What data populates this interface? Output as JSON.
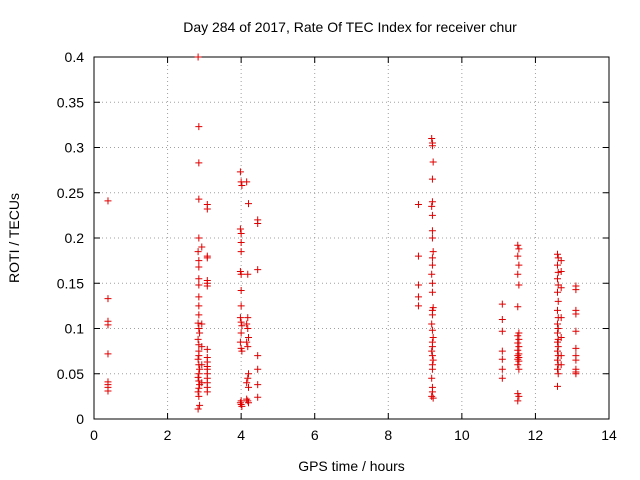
{
  "chart_data": {
    "type": "scatter",
    "title": "Day 284 of 2017, Rate Of TEC Index for receiver chur",
    "xlabel": "GPS time / hours",
    "ylabel": "ROTI / TECUs",
    "xlim": [
      0,
      14
    ],
    "ylim": [
      0,
      0.4
    ],
    "xticks": [
      "0",
      "2",
      "4",
      "6",
      "8",
      "10",
      "12",
      "14"
    ],
    "yticks": [
      "0",
      "0.05",
      "0.1",
      "0.15",
      "0.2",
      "0.25",
      "0.3",
      "0.35",
      "0.4"
    ],
    "grid": true,
    "marker": "+",
    "color": "#e00000",
    "series": [
      {
        "points": [
          [
            0.38,
            0.241
          ],
          [
            0.38,
            0.133
          ],
          [
            0.38,
            0.108
          ],
          [
            0.38,
            0.104
          ],
          [
            0.38,
            0.072
          ],
          [
            0.38,
            0.041
          ],
          [
            0.38,
            0.038
          ],
          [
            0.38,
            0.035
          ],
          [
            0.38,
            0.031
          ],
          [
            2.83,
            0.4
          ],
          [
            2.85,
            0.323
          ],
          [
            2.85,
            0.283
          ],
          [
            2.85,
            0.243
          ],
          [
            2.85,
            0.2
          ],
          [
            2.83,
            0.185
          ],
          [
            2.85,
            0.175
          ],
          [
            2.85,
            0.168
          ],
          [
            2.85,
            0.155
          ],
          [
            2.85,
            0.148
          ],
          [
            2.85,
            0.135
          ],
          [
            2.85,
            0.125
          ],
          [
            2.85,
            0.115
          ],
          [
            2.83,
            0.106
          ],
          [
            2.85,
            0.1
          ],
          [
            2.87,
            0.095
          ],
          [
            2.83,
            0.088
          ],
          [
            2.85,
            0.082
          ],
          [
            2.85,
            0.075
          ],
          [
            2.85,
            0.07
          ],
          [
            2.83,
            0.066
          ],
          [
            2.85,
            0.06
          ],
          [
            2.87,
            0.055
          ],
          [
            2.85,
            0.05
          ],
          [
            2.83,
            0.046
          ],
          [
            2.85,
            0.042
          ],
          [
            2.87,
            0.038
          ],
          [
            2.85,
            0.034
          ],
          [
            2.83,
            0.03
          ],
          [
            2.85,
            0.025
          ],
          [
            2.87,
            0.015
          ],
          [
            2.83,
            0.011
          ],
          [
            2.93,
            0.19
          ],
          [
            2.93,
            0.105
          ],
          [
            2.93,
            0.08
          ],
          [
            2.93,
            0.06
          ],
          [
            2.93,
            0.04
          ],
          [
            3.08,
            0.237
          ],
          [
            3.08,
            0.232
          ],
          [
            3.08,
            0.18
          ],
          [
            3.08,
            0.178
          ],
          [
            3.08,
            0.153
          ],
          [
            3.08,
            0.15
          ],
          [
            3.08,
            0.147
          ],
          [
            3.08,
            0.077
          ],
          [
            3.08,
            0.068
          ],
          [
            3.08,
            0.063
          ],
          [
            3.08,
            0.058
          ],
          [
            3.08,
            0.055
          ],
          [
            3.08,
            0.05
          ],
          [
            3.08,
            0.045
          ],
          [
            3.08,
            0.04
          ],
          [
            3.08,
            0.035
          ],
          [
            3.08,
            0.03
          ],
          [
            3.98,
            0.273
          ],
          [
            4.0,
            0.262
          ],
          [
            4.02,
            0.258
          ],
          [
            3.98,
            0.21
          ],
          [
            4.0,
            0.205
          ],
          [
            4.0,
            0.195
          ],
          [
            4.0,
            0.185
          ],
          [
            3.98,
            0.163
          ],
          [
            4.0,
            0.16
          ],
          [
            4.0,
            0.142
          ],
          [
            4.0,
            0.125
          ],
          [
            3.98,
            0.112
          ],
          [
            4.0,
            0.107
          ],
          [
            4.02,
            0.103
          ],
          [
            4.0,
            0.095
          ],
          [
            3.98,
            0.085
          ],
          [
            4.0,
            0.078
          ],
          [
            4.02,
            0.075
          ],
          [
            4.0,
            0.02
          ],
          [
            3.98,
            0.018
          ],
          [
            4.0,
            0.016
          ],
          [
            4.02,
            0.014
          ],
          [
            4.15,
            0.262
          ],
          [
            4.2,
            0.238
          ],
          [
            4.18,
            0.16
          ],
          [
            4.18,
            0.112
          ],
          [
            4.15,
            0.105
          ],
          [
            4.18,
            0.1
          ],
          [
            4.2,
            0.09
          ],
          [
            4.15,
            0.085
          ],
          [
            4.18,
            0.08
          ],
          [
            4.2,
            0.05
          ],
          [
            4.18,
            0.045
          ],
          [
            4.15,
            0.04
          ],
          [
            4.2,
            0.035
          ],
          [
            4.15,
            0.022
          ],
          [
            4.18,
            0.02
          ],
          [
            4.2,
            0.018
          ],
          [
            4.45,
            0.22
          ],
          [
            4.45,
            0.216
          ],
          [
            4.45,
            0.165
          ],
          [
            4.45,
            0.07
          ],
          [
            4.45,
            0.055
          ],
          [
            4.45,
            0.038
          ],
          [
            4.45,
            0.024
          ],
          [
            8.82,
            0.237
          ],
          [
            8.82,
            0.18
          ],
          [
            8.82,
            0.148
          ],
          [
            8.82,
            0.135
          ],
          [
            8.82,
            0.125
          ],
          [
            9.18,
            0.31
          ],
          [
            9.2,
            0.305
          ],
          [
            9.2,
            0.302
          ],
          [
            9.22,
            0.284
          ],
          [
            9.2,
            0.265
          ],
          [
            9.2,
            0.24
          ],
          [
            9.18,
            0.235
          ],
          [
            9.2,
            0.225
          ],
          [
            9.2,
            0.208
          ],
          [
            9.2,
            0.2
          ],
          [
            9.22,
            0.185
          ],
          [
            9.2,
            0.178
          ],
          [
            9.2,
            0.17
          ],
          [
            9.18,
            0.16
          ],
          [
            9.2,
            0.15
          ],
          [
            9.2,
            0.14
          ],
          [
            9.22,
            0.123
          ],
          [
            9.2,
            0.12
          ],
          [
            9.2,
            0.115
          ],
          [
            9.18,
            0.105
          ],
          [
            9.2,
            0.098
          ],
          [
            9.22,
            0.09
          ],
          [
            9.2,
            0.085
          ],
          [
            9.2,
            0.08
          ],
          [
            9.18,
            0.075
          ],
          [
            9.2,
            0.07
          ],
          [
            9.22,
            0.065
          ],
          [
            9.2,
            0.06
          ],
          [
            9.2,
            0.055
          ],
          [
            9.18,
            0.045
          ],
          [
            9.2,
            0.035
          ],
          [
            9.2,
            0.03
          ],
          [
            9.18,
            0.025
          ],
          [
            9.22,
            0.023
          ],
          [
            11.1,
            0.127
          ],
          [
            11.1,
            0.11
          ],
          [
            11.1,
            0.097
          ],
          [
            11.1,
            0.075
          ],
          [
            11.1,
            0.066
          ],
          [
            11.1,
            0.055
          ],
          [
            11.1,
            0.045
          ],
          [
            11.52,
            0.192
          ],
          [
            11.55,
            0.188
          ],
          [
            11.52,
            0.18
          ],
          [
            11.55,
            0.17
          ],
          [
            11.52,
            0.16
          ],
          [
            11.55,
            0.148
          ],
          [
            11.52,
            0.124
          ],
          [
            11.55,
            0.095
          ],
          [
            11.52,
            0.092
          ],
          [
            11.55,
            0.088
          ],
          [
            11.52,
            0.084
          ],
          [
            11.55,
            0.08
          ],
          [
            11.52,
            0.076
          ],
          [
            11.55,
            0.072
          ],
          [
            11.52,
            0.07
          ],
          [
            11.55,
            0.068
          ],
          [
            11.52,
            0.066
          ],
          [
            11.55,
            0.064
          ],
          [
            11.52,
            0.06
          ],
          [
            11.55,
            0.055
          ],
          [
            11.52,
            0.028
          ],
          [
            11.55,
            0.025
          ],
          [
            11.52,
            0.02
          ],
          [
            12.6,
            0.182
          ],
          [
            12.62,
            0.178
          ],
          [
            12.6,
            0.17
          ],
          [
            12.62,
            0.162
          ],
          [
            12.6,
            0.155
          ],
          [
            12.62,
            0.148
          ],
          [
            12.6,
            0.14
          ],
          [
            12.62,
            0.13
          ],
          [
            12.6,
            0.12
          ],
          [
            12.62,
            0.112
          ],
          [
            12.6,
            0.105
          ],
          [
            12.62,
            0.1
          ],
          [
            12.6,
            0.095
          ],
          [
            12.62,
            0.088
          ],
          [
            12.6,
            0.085
          ],
          [
            12.62,
            0.08
          ],
          [
            12.6,
            0.075
          ],
          [
            12.62,
            0.07
          ],
          [
            12.6,
            0.065
          ],
          [
            12.62,
            0.06
          ],
          [
            12.6,
            0.055
          ],
          [
            12.62,
            0.05
          ],
          [
            12.6,
            0.036
          ],
          [
            12.7,
            0.175
          ],
          [
            12.7,
            0.163
          ],
          [
            12.7,
            0.145
          ],
          [
            12.7,
            0.112
          ],
          [
            12.7,
            0.09
          ],
          [
            12.7,
            0.07
          ],
          [
            12.7,
            0.06
          ],
          [
            13.1,
            0.147
          ],
          [
            13.1,
            0.143
          ],
          [
            13.1,
            0.12
          ],
          [
            13.1,
            0.116
          ],
          [
            13.1,
            0.097
          ],
          [
            13.1,
            0.078
          ],
          [
            13.1,
            0.07
          ],
          [
            13.1,
            0.065
          ],
          [
            13.1,
            0.055
          ],
          [
            13.1,
            0.052
          ],
          [
            13.1,
            0.05
          ]
        ]
      }
    ]
  }
}
